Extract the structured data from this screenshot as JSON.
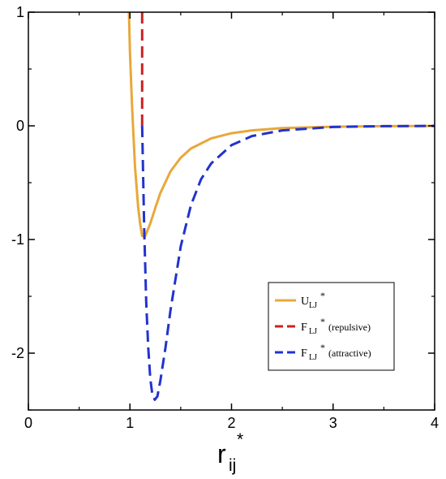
{
  "chart_data": {
    "type": "line",
    "xlim": [
      0,
      4
    ],
    "ylim": [
      -2.5,
      1
    ],
    "x_ticks": [
      "0",
      "1",
      "2",
      "3",
      "4"
    ],
    "y_ticks": [
      "-2",
      "-1",
      "0",
      "1"
    ],
    "xlabel": {
      "main": "r",
      "sub": "ij",
      "sup": "*"
    },
    "ylabel": "",
    "grid": false,
    "legend_position": "lower-right",
    "series": [
      {
        "name": "U_LJ*",
        "legend": {
          "main": "U",
          "sub": "LJ",
          "sup": "*",
          "note": ""
        },
        "color": "#e8a83a",
        "dash": "solid",
        "x": [
          0.99,
          1.0,
          1.02,
          1.05,
          1.08,
          1.1,
          1.12,
          1.15,
          1.2,
          1.25,
          1.3,
          1.4,
          1.5,
          1.6,
          1.8,
          2.0,
          2.2,
          2.5,
          3.0,
          3.5,
          4.0
        ],
        "y": [
          1.0,
          0.64,
          0.18,
          -0.36,
          -0.71,
          -0.86,
          -0.97,
          -0.97,
          -0.86,
          -0.72,
          -0.59,
          -0.4,
          -0.28,
          -0.2,
          -0.11,
          -0.065,
          -0.04,
          -0.02,
          -0.008,
          -0.003,
          -0.001
        ]
      },
      {
        "name": "F_LJ* (repulsive)",
        "legend": {
          "main": "F",
          "sub": "LJ",
          "sup": "*",
          "note": "(repulsive)"
        },
        "color": "#cc2222",
        "dash": "dashed",
        "x": [
          1.12,
          1.12
        ],
        "y": [
          1.0,
          0.0
        ]
      },
      {
        "name": "F_LJ* (attractive)",
        "legend": {
          "main": "F",
          "sub": "LJ",
          "sup": "*",
          "note": "(attractive)"
        },
        "color": "#2233cc",
        "dash": "dashed",
        "x": [
          1.12,
          1.14,
          1.16,
          1.18,
          1.2,
          1.22,
          1.245,
          1.27,
          1.3,
          1.35,
          1.4,
          1.5,
          1.6,
          1.7,
          1.8,
          2.0,
          2.2,
          2.5,
          3.0,
          3.5,
          4.0
        ],
        "y": [
          0.0,
          -0.9,
          -1.55,
          -1.95,
          -2.22,
          -2.36,
          -2.41,
          -2.38,
          -2.24,
          -1.95,
          -1.62,
          -1.06,
          -0.7,
          -0.47,
          -0.33,
          -0.17,
          -0.09,
          -0.04,
          -0.01,
          -0.003,
          -0.001
        ]
      }
    ]
  }
}
